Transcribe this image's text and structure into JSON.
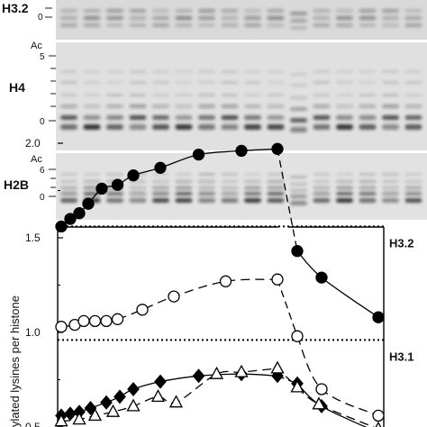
{
  "gels": [
    {
      "name": "H3.2",
      "ac_label": "",
      "ticks": [
        "0"
      ],
      "lanes": 16
    },
    {
      "name": "H4",
      "ac_label": "Ac",
      "ticks": [
        "5",
        "0"
      ],
      "lanes": 16
    },
    {
      "name": "H2B",
      "ac_label": "Ac",
      "ticks": [
        "6",
        "0"
      ],
      "lanes": 16
    }
  ],
  "chart_data": {
    "type": "scatter",
    "title": "",
    "xlabel": "",
    "ylabel": "ylated lysines per histone",
    "ylim": [
      0.5,
      2.2
    ],
    "yticks": [
      "2.0",
      "1.5",
      "1.0",
      "0.5"
    ],
    "grid": false,
    "axis_break": "top axis broken between the two time segments",
    "reference_lines": [
      {
        "label": "H3.2",
        "y": 1.56,
        "style": "dotted"
      },
      {
        "label": "H3.1",
        "y": 0.96,
        "style": "dotted"
      }
    ],
    "series": [
      {
        "marker": "filled-circle",
        "line": "solid",
        "segments": [
          {
            "x": [
              0,
              0.4,
              0.8,
              1.2,
              1.8,
              2.5,
              3.2,
              4.4,
              6.1,
              8.0,
              9.6
            ],
            "y": [
              1.56,
              1.6,
              1.63,
              1.68,
              1.76,
              1.78,
              1.83,
              1.87,
              1.94,
              1.96,
              1.97
            ]
          },
          {
            "x": [
              11.2,
              12.1,
              14.2
            ],
            "y": [
              1.43,
              1.29,
              1.08
            ]
          }
        ]
      },
      {
        "marker": "open-circle",
        "line": "dashed",
        "segments": [
          {
            "x": [
              0,
              0.6,
              1.0,
              1.5,
              2.0,
              2.5,
              3.6,
              5.0,
              7.3,
              9.6
            ],
            "y": [
              1.03,
              1.04,
              1.06,
              1.06,
              1.06,
              1.07,
              1.12,
              1.19,
              1.27,
              1.28
            ]
          },
          {
            "x": [
              11.2,
              12.1,
              14.2
            ],
            "y": [
              0.98,
              0.7,
              0.56
            ]
          }
        ]
      },
      {
        "marker": "filled-diamond",
        "line": "solid",
        "segments": [
          {
            "x": [
              0,
              0.4,
              0.8,
              1.3,
              2.0,
              2.6,
              3.2,
              4.4,
              6.1,
              8.0,
              9.6
            ],
            "y": [
              0.56,
              0.57,
              0.58,
              0.6,
              0.63,
              0.66,
              0.7,
              0.74,
              0.77,
              0.78,
              0.77
            ]
          },
          {
            "x": [
              11.2,
              12.1,
              14.2
            ],
            "y": [
              0.73,
              0.61,
              0.47
            ]
          }
        ]
      },
      {
        "marker": "open-triangle",
        "line": "dashed",
        "segments": [
          {
            "x": [
              0,
              0.8,
              1.5,
              2.3,
              3.2,
              4.3,
              5.1,
              6.9,
              8.0,
              9.6
            ],
            "y": [
              0.53,
              0.54,
              0.56,
              0.58,
              0.61,
              0.66,
              0.63,
              0.78,
              0.79,
              0.81
            ]
          },
          {
            "x": [
              11.2,
              12.0,
              14.2
            ],
            "y": [
              0.71,
              0.62,
              0.49
            ]
          }
        ]
      }
    ]
  }
}
